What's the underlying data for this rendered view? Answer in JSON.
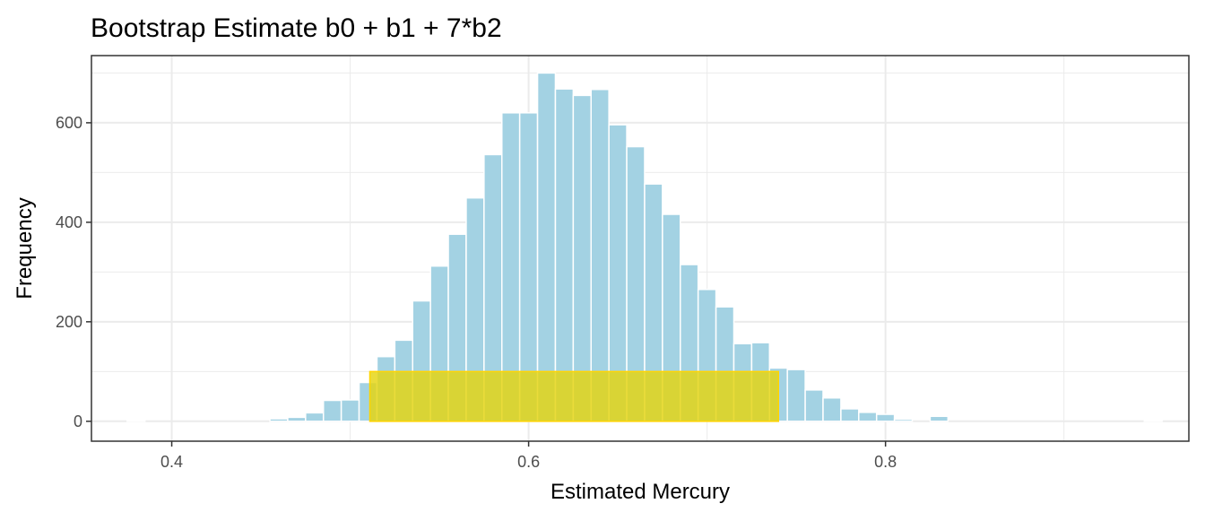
{
  "chart_data": {
    "type": "bar",
    "title": "Bootstrap Estimate b0 + b1 + 7*b2",
    "xlabel": "Estimated Mercury",
    "ylabel": "Frequency",
    "xlim": [
      0.355,
      0.97
    ],
    "ylim": [
      -40,
      735
    ],
    "x_ticks": [
      0.4,
      0.6,
      0.8
    ],
    "x_tick_labels": [
      "0.4",
      "0.6",
      "0.8"
    ],
    "y_ticks": [
      0,
      200,
      400,
      600
    ],
    "y_tick_labels": [
      "0",
      "200",
      "400",
      "600"
    ],
    "x_minor_gridlines": [
      0.5,
      0.7,
      0.9
    ],
    "y_minor_gridlines": [
      100,
      300,
      500,
      700
    ],
    "grid": true,
    "bin_width": 0.01,
    "bin_centers": [
      0.38,
      0.39,
      0.4,
      0.41,
      0.42,
      0.43,
      0.44,
      0.45,
      0.46,
      0.47,
      0.48,
      0.49,
      0.5,
      0.51,
      0.52,
      0.53,
      0.54,
      0.55,
      0.56,
      0.57,
      0.58,
      0.59,
      0.6,
      0.61,
      0.62,
      0.63,
      0.64,
      0.65,
      0.66,
      0.67,
      0.68,
      0.69,
      0.7,
      0.71,
      0.72,
      0.73,
      0.74,
      0.75,
      0.76,
      0.77,
      0.78,
      0.79,
      0.8,
      0.81,
      0.82,
      0.83,
      0.84,
      0.85,
      0.86,
      0.87,
      0.88,
      0.89,
      0.9,
      0.91,
      0.92,
      0.93,
      0.94,
      0.95
    ],
    "values": [
      2,
      0,
      0,
      0,
      0,
      0,
      0,
      0,
      5,
      8,
      17,
      42,
      43,
      78,
      130,
      163,
      242,
      312,
      376,
      449,
      536,
      620,
      620,
      700,
      668,
      655,
      667,
      596,
      552,
      477,
      416,
      315,
      265,
      230,
      156,
      158,
      107,
      104,
      63,
      47,
      25,
      18,
      14,
      4,
      0,
      10,
      0,
      0,
      0,
      0,
      0,
      0,
      0,
      0,
      0,
      0,
      0,
      2
    ],
    "interval": {
      "low": 0.511,
      "high": 0.74,
      "height": 100
    },
    "colors": {
      "bars": "#a3d2e3",
      "bar_outline": "#ffffff",
      "interval": "#e5d40f",
      "interval_outline": "#ffd500",
      "grid": "#ebebeb",
      "panel_border": "#333333"
    }
  }
}
